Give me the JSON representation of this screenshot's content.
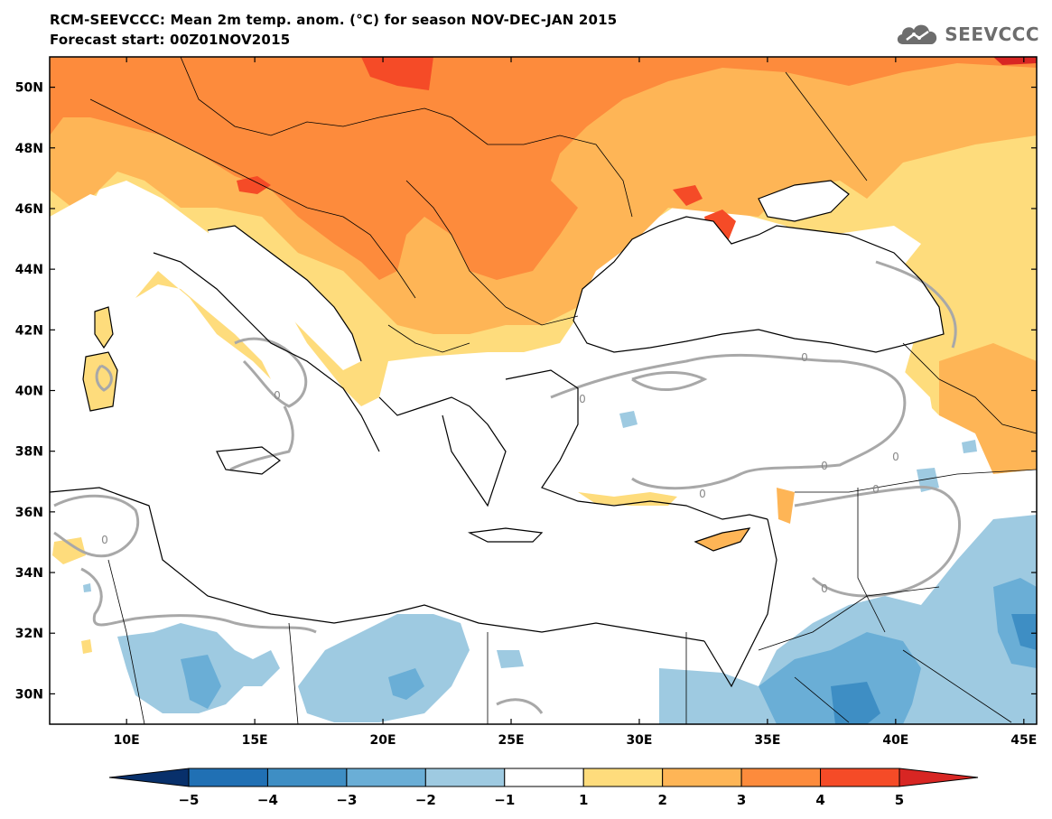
{
  "title": {
    "line1": "RCM-SEEVCCC: Mean 2m temp. anom. (°C) for season NOV-DEC-JAN 2015",
    "line2": "Forecast start: 00Z01NOV2015"
  },
  "logo": {
    "text": "SEEVCCC",
    "icon": "cloud-icon"
  },
  "map": {
    "lon_range": [
      7,
      45.5
    ],
    "lat_range": [
      29,
      51
    ],
    "lat_ticks": [
      {
        "v": 50,
        "label": "50N"
      },
      {
        "v": 48,
        "label": "48N"
      },
      {
        "v": 46,
        "label": "46N"
      },
      {
        "v": 44,
        "label": "44N"
      },
      {
        "v": 42,
        "label": "42N"
      },
      {
        "v": 40,
        "label": "40N"
      },
      {
        "v": 38,
        "label": "38N"
      },
      {
        "v": 36,
        "label": "36N"
      },
      {
        "v": 34,
        "label": "34N"
      },
      {
        "v": 32,
        "label": "32N"
      },
      {
        "v": 30,
        "label": "30N"
      }
    ],
    "lon_ticks": [
      {
        "v": 10,
        "label": "10E"
      },
      {
        "v": 15,
        "label": "15E"
      },
      {
        "v": 20,
        "label": "20E"
      },
      {
        "v": 25,
        "label": "25E"
      },
      {
        "v": 30,
        "label": "30E"
      },
      {
        "v": 35,
        "label": "35E"
      },
      {
        "v": 40,
        "label": "40E"
      },
      {
        "v": 45,
        "label": "45E"
      }
    ],
    "contour_label": "0",
    "colors": {
      "a_1_2": "#fedc7c",
      "a_2_3": "#feb556",
      "a_3_4": "#fd8b3c",
      "a_4_5": "#f54b27",
      "a_gt5": "#d82623",
      "b_m1_m2": "#9ecae1",
      "b_m2_m3": "#6aaed6",
      "b_m3_m4": "#3e8ec4",
      "b_m4_m5": "#2070b4",
      "b_lt_m5": "#08306b",
      "neutral": "#ffffff",
      "contour": "#a8a8a8",
      "coast": "#000000"
    }
  },
  "colorbar": {
    "labels": [
      "−5",
      "−4",
      "−3",
      "−2",
      "−1",
      "1",
      "2",
      "3",
      "4",
      "5"
    ],
    "colors": [
      "#08306b",
      "#2070b4",
      "#3e8ec4",
      "#6aaed6",
      "#9ecae1",
      "#ffffff",
      "#fedc7c",
      "#feb556",
      "#fd8b3c",
      "#f54b27",
      "#d82623"
    ]
  }
}
